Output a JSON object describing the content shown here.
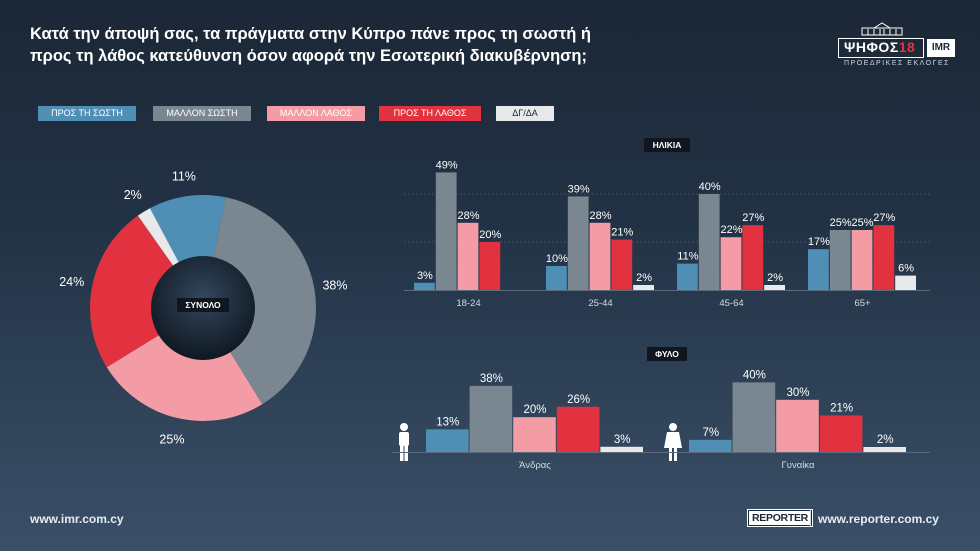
{
  "title": {
    "line1": "Κατά την άποψή σας, τα πράγματα στην Κύπρο πάνε προς τη σωστή ή",
    "line2": "προς τη λάθος κατεύθυνση όσον αφορά την Εσωτερική διακυβέρνηση;"
  },
  "logo": {
    "main": "ΨΗΦΟΣ",
    "year": "18",
    "brand": "IMR",
    "subtitle": "ΠΡΟΕΔΡΙΚΕΣ ΕΚΛΟΓΕΣ"
  },
  "colors": {
    "pros_ti_sosti": "#4f8fb6",
    "mallon_sosti": "#7a8791",
    "mallon_lathos": "#f39ca6",
    "pros_ti_lathos": "#e2323f",
    "dg_da": "#e7e9eb"
  },
  "legend": [
    "ΠΡΟΣ ΤΗ ΣΩΣΤΗ",
    "ΜΑΛΛΟΝ ΣΩΣΤΗ",
    "ΜΑΛΛΟΝ ΛΑΘΟΣ",
    "ΠΡΟΣ ΤΗ ΛΑΘΟΣ",
    "ΔΓ/ΔΑ"
  ],
  "chart_data": [
    {
      "type": "pie",
      "title": "ΣΥΝΟΛΟ",
      "labels": [
        "ΠΡΟΣ ΤΗ ΣΩΣΤΗ",
        "ΜΑΛΛΟΝ ΣΩΣΤΗ",
        "ΜΑΛΛΟΝ ΛΑΘΟΣ",
        "ΠΡΟΣ ΤΗ ΛΑΘΟΣ",
        "ΔΓ/ΔΑ"
      ],
      "values": [
        11,
        38,
        25,
        24,
        2
      ],
      "value_labels": [
        "11%",
        "38%",
        "25%",
        "24%",
        "2%"
      ]
    },
    {
      "type": "bar",
      "title": "ΗΛΙΚΙΑ",
      "categories": [
        "18-24",
        "25-44",
        "45-64",
        "65+"
      ],
      "series": [
        {
          "name": "ΠΡΟΣ ΤΗ ΣΩΣΤΗ",
          "values": [
            3,
            10,
            11,
            17
          ]
        },
        {
          "name": "ΜΑΛΛΟΝ ΣΩΣΤΗ",
          "values": [
            49,
            39,
            40,
            25
          ]
        },
        {
          "name": "ΜΑΛΛΟΝ ΛΑΘΟΣ",
          "values": [
            28,
            28,
            22,
            25
          ]
        },
        {
          "name": "ΠΡΟΣ ΤΗ ΛΑΘΟΣ",
          "values": [
            20,
            21,
            27,
            27
          ]
        },
        {
          "name": "ΔΓ/ΔΑ",
          "values": [
            0,
            2,
            2,
            6
          ]
        }
      ],
      "value_labels": [
        [
          "3%",
          "10%",
          "11%",
          "17%"
        ],
        [
          "49%",
          "39%",
          "40%",
          "25%"
        ],
        [
          "28%",
          "28%",
          "22%",
          "25%"
        ],
        [
          "20%",
          "21%",
          "27%",
          "27%"
        ],
        [
          "",
          "2%",
          "2%",
          "6%"
        ]
      ]
    },
    {
      "type": "bar",
      "title": "ΦΥΛΟ",
      "categories": [
        "Άνδρας",
        "Γυναίκα"
      ],
      "series": [
        {
          "name": "ΠΡΟΣ ΤΗ ΣΩΣΤΗ",
          "values": [
            13,
            7
          ]
        },
        {
          "name": "ΜΑΛΛΟΝ ΣΩΣΤΗ",
          "values": [
            38,
            40
          ]
        },
        {
          "name": "ΜΑΛΛΟΝ ΛΑΘΟΣ",
          "values": [
            20,
            30
          ]
        },
        {
          "name": "ΠΡΟΣ ΤΗ ΛΑΘΟΣ",
          "values": [
            26,
            21
          ]
        },
        {
          "name": "ΔΓ/ΔΑ",
          "values": [
            3,
            2
          ]
        }
      ],
      "value_labels": [
        [
          "13%",
          "7%"
        ],
        [
          "38%",
          "40%"
        ],
        [
          "20%",
          "30%"
        ],
        [
          "26%",
          "21%"
        ],
        [
          "3%",
          "2%"
        ]
      ]
    }
  ],
  "footer": {
    "left": "www.imr.com.cy",
    "reporter": "REPORTER",
    "right": "www.reporter.com.cy"
  }
}
